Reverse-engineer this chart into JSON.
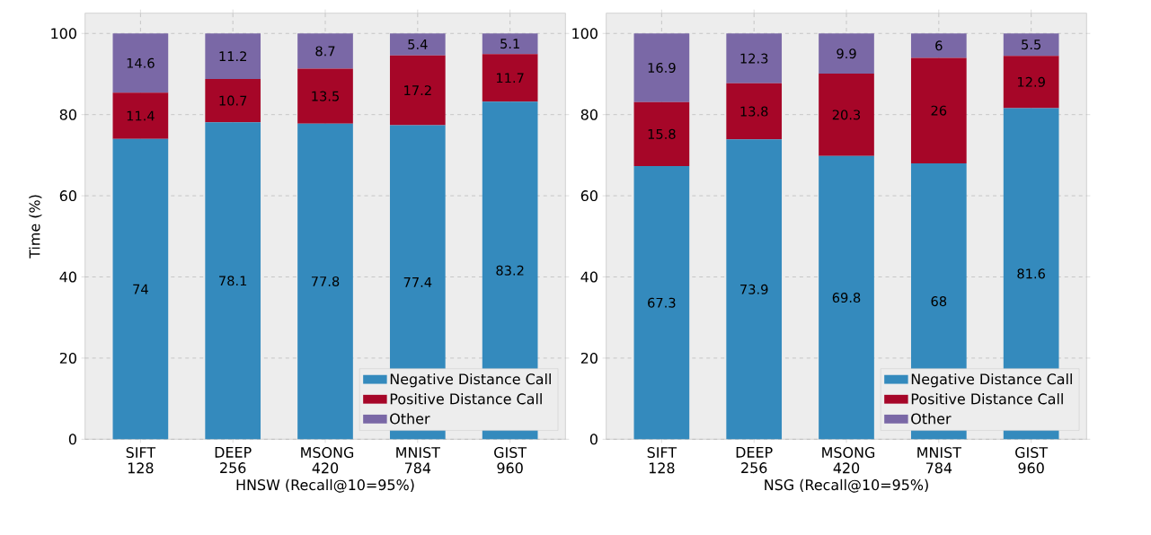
{
  "chart_data": [
    {
      "type": "bar",
      "stacked": true,
      "xlabel": "HNSW (Recall@10=95%)",
      "ylabel": "Time (%)",
      "categories": [
        "SIFT 128",
        "DEEP 256",
        "MSONG 420",
        "MNIST 784",
        "GIST 960"
      ],
      "series": [
        {
          "name": "Negative Distance Call",
          "color": "#348abd",
          "values": [
            74,
            78.1,
            77.8,
            77.4,
            83.2
          ]
        },
        {
          "name": "Positive Distance Call",
          "color": "#a60628",
          "values": [
            11.4,
            10.7,
            13.5,
            17.2,
            11.7
          ]
        },
        {
          "name": "Other",
          "color": "#7a68a6",
          "values": [
            14.6,
            11.2,
            8.7,
            5.4,
            5.1
          ]
        }
      ],
      "ylim": [
        0,
        105
      ],
      "yticks": [
        0,
        20,
        40,
        60,
        80,
        100
      ],
      "grid": true,
      "legend": "bottom right",
      "data_labels": true
    },
    {
      "type": "bar",
      "stacked": true,
      "xlabel": "NSG (Recall@10=95%)",
      "categories": [
        "SIFT 128",
        "DEEP 256",
        "MSONG 420",
        "MNIST 784",
        "GIST 960"
      ],
      "series": [
        {
          "name": "Negative Distance Call",
          "color": "#348abd",
          "values": [
            67.3,
            73.9,
            69.8,
            68,
            81.6
          ]
        },
        {
          "name": "Positive Distance Call",
          "color": "#a60628",
          "values": [
            15.8,
            13.8,
            20.3,
            26,
            12.9
          ]
        },
        {
          "name": "Other",
          "color": "#7a68a6",
          "values": [
            16.9,
            12.3,
            9.9,
            6,
            5.5
          ]
        }
      ],
      "ylim": [
        0,
        105
      ],
      "yticks": [
        0,
        20,
        40,
        60,
        80,
        100
      ],
      "grid": true,
      "legend": "bottom right",
      "data_labels": true
    }
  ]
}
